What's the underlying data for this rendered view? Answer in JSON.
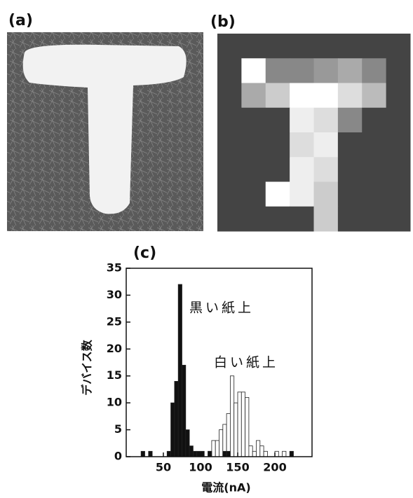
{
  "panels": [
    {
      "label": "(a)"
    },
    {
      "label": "(b)"
    }
  ],
  "chart_data": {
    "type": "histogram",
    "panel_label": "(c)",
    "x_label": "電流(nA)",
    "y_label": "デバイス数",
    "bins": [
      0,
      5,
      10,
      15,
      20,
      25,
      30,
      35,
      40,
      45,
      50,
      55,
      60,
      65,
      70,
      75,
      80,
      85,
      90,
      95,
      100,
      105,
      110,
      115,
      120,
      125,
      130,
      135,
      140,
      145,
      150,
      155,
      160,
      165,
      170,
      175,
      180,
      185,
      190,
      195,
      200,
      205,
      210,
      215,
      220,
      225,
      230,
      235,
      240,
      245,
      250
    ],
    "series": [
      {
        "name": "白い紙上",
        "color": "#ffffff",
        "values": [
          0,
          0,
          0,
          0,
          0,
          0,
          0,
          0,
          0,
          0,
          0,
          0,
          0,
          0,
          0,
          0,
          0,
          0,
          0,
          0,
          0,
          0,
          1,
          3,
          3,
          5,
          6,
          8,
          15,
          10,
          12,
          12,
          11,
          2,
          1,
          3,
          2,
          1,
          0,
          0,
          1,
          0,
          1,
          0,
          0,
          0,
          0,
          0,
          0,
          0
        ]
      },
      {
        "name": "黒い紙上",
        "color": "#111111",
        "values": [
          0,
          0,
          0,
          0,
          1,
          0,
          1,
          0,
          0,
          0,
          0,
          1,
          10,
          14,
          32,
          17,
          5,
          2,
          1,
          1,
          1,
          0,
          1,
          0,
          0,
          0,
          1,
          1,
          0,
          0,
          0,
          0,
          0,
          0,
          0,
          0,
          0,
          0,
          0,
          0,
          0,
          0,
          0,
          0,
          1,
          0,
          0,
          0,
          0,
          0
        ]
      }
    ],
    "xlim": [
      0,
      250
    ],
    "ylim": [
      0,
      35
    ],
    "xticks": [
      50,
      100,
      150,
      200
    ],
    "yticks": [
      0,
      5,
      10,
      15,
      20,
      25,
      30,
      35
    ]
  }
}
